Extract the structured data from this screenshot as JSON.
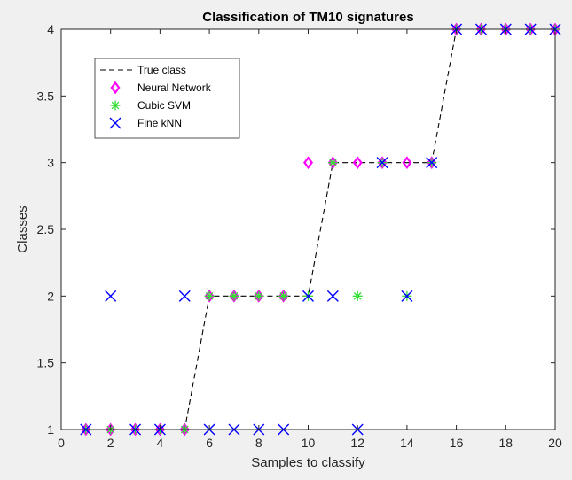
{
  "chart_data": {
    "type": "scatter",
    "title": "Classification of TM10 signatures",
    "xlabel": "Samples to classify",
    "ylabel": "Classes",
    "xlim": [
      0,
      20
    ],
    "ylim": [
      1,
      4
    ],
    "xticks": [
      "0",
      "2",
      "4",
      "6",
      "8",
      "10",
      "12",
      "14",
      "16",
      "18",
      "20"
    ],
    "yticks": [
      "1",
      "1.5",
      "2",
      "2.5",
      "3",
      "3.5",
      "4"
    ],
    "grid": false,
    "legend_position": "top-left",
    "series": [
      {
        "name": "True class",
        "style": "dashed-line",
        "color": "#000000",
        "x": [
          1,
          2,
          3,
          4,
          5,
          6,
          7,
          8,
          9,
          10,
          11,
          12,
          13,
          14,
          15,
          16,
          17,
          18,
          19,
          20
        ],
        "y": [
          1,
          1,
          1,
          1,
          1,
          2,
          2,
          2,
          2,
          2,
          3,
          3,
          3,
          3,
          3,
          4,
          4,
          4,
          4,
          4
        ]
      },
      {
        "name": "Neural Network",
        "style": "diamond",
        "color": "#ff00ff",
        "x": [
          1,
          2,
          3,
          4,
          5,
          6,
          7,
          8,
          9,
          10,
          11,
          12,
          13,
          14,
          15,
          16,
          17,
          18,
          19,
          20
        ],
        "y": [
          1,
          1,
          1,
          1,
          1,
          2,
          2,
          2,
          2,
          3,
          3,
          3,
          3,
          3,
          3,
          4,
          4,
          4,
          4,
          4
        ]
      },
      {
        "name": "Cubic SVM",
        "style": "asterisk",
        "color": "#33dd33",
        "x": [
          1,
          2,
          3,
          4,
          5,
          6,
          7,
          8,
          9,
          10,
          11,
          12,
          13,
          14,
          15,
          16,
          17,
          18,
          19,
          20
        ],
        "y": [
          1,
          1,
          1,
          1,
          1,
          2,
          2,
          2,
          2,
          2,
          3,
          2,
          3,
          2,
          3,
          4,
          4,
          4,
          4,
          4
        ]
      },
      {
        "name": "Fine kNN",
        "style": "x",
        "color": "#0000ff",
        "x": [
          1,
          2,
          3,
          4,
          5,
          6,
          7,
          8,
          9,
          10,
          11,
          12,
          13,
          14,
          15,
          16,
          17,
          18,
          19,
          20
        ],
        "y": [
          1,
          2,
          1,
          1,
          2,
          1,
          1,
          1,
          1,
          2,
          2,
          1,
          3,
          2,
          3,
          4,
          4,
          4,
          4,
          4
        ]
      }
    ]
  }
}
